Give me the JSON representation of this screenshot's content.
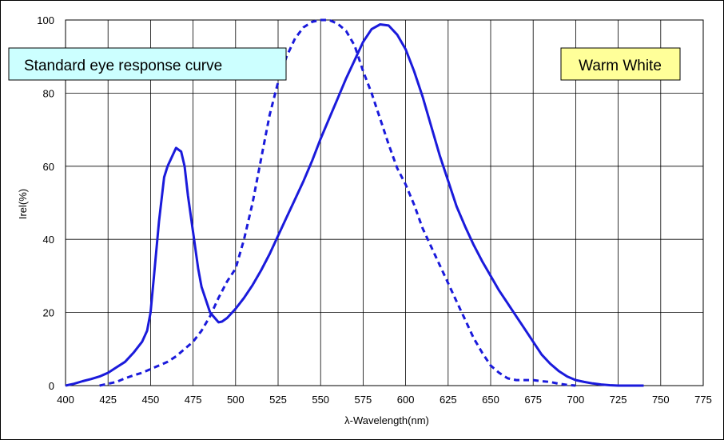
{
  "chart_data": {
    "type": "line",
    "xlabel": "λ-Wavelength(nm)",
    "ylabel": "Irel(%)",
    "xlim": [
      400,
      775
    ],
    "ylim": [
      0,
      100
    ],
    "x_ticks": [
      400,
      425,
      450,
      475,
      500,
      525,
      550,
      575,
      600,
      625,
      650,
      675,
      700,
      725,
      750,
      775
    ],
    "y_ticks": [
      0,
      20,
      40,
      60,
      80,
      100
    ],
    "grid": true,
    "annotations": [
      {
        "text": "Standard eye response curve",
        "background": "#ccffff"
      },
      {
        "text": "Warm White",
        "background": "#ffff99"
      }
    ],
    "series": [
      {
        "style": "solid",
        "color": "#1a1adb",
        "x": [
          400,
          405,
          410,
          415,
          420,
          425,
          430,
          435,
          440,
          445,
          448,
          450,
          452,
          455,
          458,
          460,
          462,
          465,
          468,
          470,
          472,
          475,
          478,
          480,
          485,
          490,
          492,
          495,
          500,
          505,
          510,
          515,
          520,
          525,
          530,
          535,
          540,
          545,
          550,
          555,
          560,
          565,
          570,
          575,
          580,
          585,
          590,
          595,
          600,
          605,
          610,
          615,
          620,
          625,
          630,
          635,
          640,
          645,
          650,
          655,
          660,
          665,
          670,
          675,
          680,
          685,
          690,
          695,
          700,
          705,
          710,
          715,
          720,
          725,
          730,
          735,
          740
        ],
        "y": [
          0,
          0.5,
          1.2,
          1.8,
          2.5,
          3.5,
          5,
          6.5,
          9,
          12,
          15,
          20,
          30,
          45,
          57,
          60,
          62,
          65,
          64,
          60,
          52,
          42,
          32,
          27,
          20,
          17.3,
          17.5,
          18.5,
          21,
          24,
          27.5,
          31.5,
          36,
          41,
          46,
          51,
          56,
          61.5,
          67.5,
          73,
          78.5,
          84,
          89,
          94,
          97.5,
          98.8,
          98.5,
          96,
          92,
          86,
          79,
          71,
          63,
          56,
          49,
          43.5,
          38.5,
          34,
          30,
          26,
          22.5,
          19,
          15.5,
          12,
          8.5,
          6,
          4,
          2.5,
          1.5,
          1,
          0.6,
          0.3,
          0.1,
          0,
          0,
          0,
          0
        ]
      },
      {
        "style": "dashed",
        "color": "#1a1adb",
        "x": [
          420,
          425,
          430,
          435,
          440,
          445,
          450,
          455,
          460,
          465,
          470,
          475,
          480,
          485,
          490,
          495,
          500,
          505,
          510,
          515,
          520,
          525,
          530,
          535,
          540,
          545,
          550,
          555,
          560,
          565,
          570,
          575,
          580,
          585,
          590,
          595,
          600,
          605,
          610,
          615,
          620,
          625,
          630,
          635,
          640,
          645,
          650,
          655,
          660,
          665,
          670,
          675,
          680,
          685,
          690,
          695,
          700
        ],
        "y": [
          0,
          0.5,
          1,
          2,
          2.8,
          3.5,
          4.5,
          5.5,
          6.5,
          8,
          10,
          12,
          15,
          19,
          24,
          28.5,
          32,
          40,
          50,
          62,
          74,
          83,
          90,
          95,
          98,
          99.5,
          100,
          100,
          99,
          97,
          93,
          86,
          80,
          73,
          66,
          59.5,
          55,
          49.5,
          43,
          38,
          33,
          28,
          23,
          18,
          13,
          9,
          5.5,
          3.5,
          2,
          1.5,
          1.5,
          1.5,
          1.2,
          1,
          0.5,
          0.2,
          0
        ]
      }
    ]
  }
}
